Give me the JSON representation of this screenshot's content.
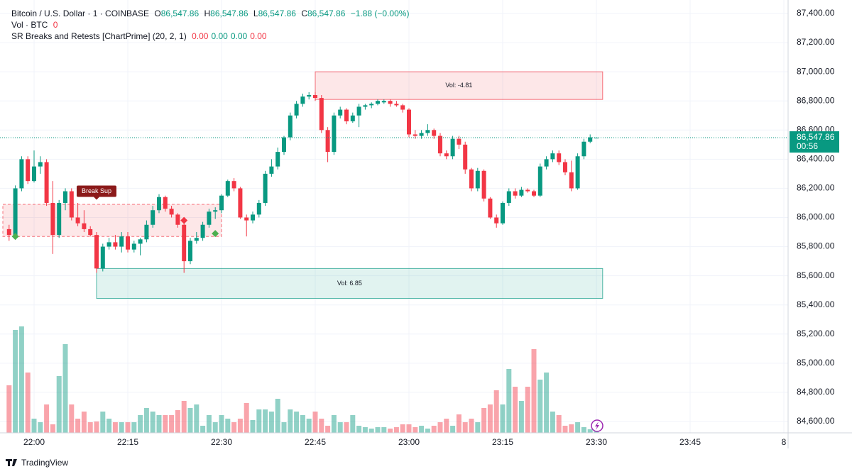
{
  "chart_data": {
    "type": "candlestick",
    "legend": {
      "symbol": "Bitcoin / U.S. Dollar · 1 · COINBASE",
      "o_label": "O",
      "open": "86,547.86",
      "h_label": "H",
      "high": "86,547.86",
      "l_label": "L",
      "low": "86,547.86",
      "c_label": "C",
      "close": "86,547.86",
      "change": "−1.88 (−0.00%)"
    },
    "volume_legend": {
      "name": "Vol · BTC",
      "value": "0"
    },
    "indicator_legend": {
      "name": "SR Breaks and Retests [ChartPrime] (20, 2, 1)",
      "values": [
        "0.00",
        "0.00",
        "0.00",
        "0.00"
      ],
      "colors": [
        "#f23645",
        "#089981",
        "#089981",
        "#f23645"
      ]
    },
    "up_color": "#089981",
    "down_color": "#f23645",
    "x": [
      "21:56",
      "21:57",
      "21:58",
      "21:59",
      "22:00",
      "22:01",
      "22:02",
      "22:03",
      "22:04",
      "22:05",
      "22:06",
      "22:07",
      "22:08",
      "22:09",
      "22:10",
      "22:11",
      "22:12",
      "22:13",
      "22:14",
      "22:15",
      "22:16",
      "22:17",
      "22:18",
      "22:19",
      "22:20",
      "22:21",
      "22:22",
      "22:23",
      "22:24",
      "22:25",
      "22:26",
      "22:27",
      "22:28",
      "22:29",
      "22:30",
      "22:31",
      "22:32",
      "22:33",
      "22:34",
      "22:35",
      "22:36",
      "22:37",
      "22:38",
      "22:39",
      "22:40",
      "22:41",
      "22:42",
      "22:43",
      "22:44",
      "22:45",
      "22:46",
      "22:47",
      "22:48",
      "22:49",
      "22:50",
      "22:51",
      "22:52",
      "22:53",
      "22:54",
      "22:55",
      "22:56",
      "22:57",
      "22:58",
      "22:59",
      "23:00",
      "23:01",
      "23:02",
      "23:03",
      "23:04",
      "23:05",
      "23:06",
      "23:07",
      "23:08",
      "23:09",
      "23:10",
      "23:11",
      "23:12",
      "23:13",
      "23:14",
      "23:15",
      "23:16",
      "23:17",
      "23:18",
      "23:19",
      "23:20",
      "23:21",
      "23:22",
      "23:23",
      "23:24",
      "23:25",
      "23:26",
      "23:27",
      "23:28",
      "23:29",
      "23:30"
    ],
    "ohlc": [
      [
        85920,
        85950,
        85840,
        85880
      ],
      [
        85880,
        86220,
        85860,
        86200
      ],
      [
        86200,
        86420,
        86180,
        86400
      ],
      [
        86400,
        86420,
        86230,
        86250
      ],
      [
        86250,
        86460,
        86240,
        86350
      ],
      [
        86350,
        86420,
        86300,
        86380
      ],
      [
        86380,
        86400,
        86080,
        86100
      ],
      [
        86100,
        86250,
        85750,
        85880
      ],
      [
        85880,
        86120,
        85860,
        86100
      ],
      [
        86100,
        86200,
        86050,
        86180
      ],
      [
        86180,
        86200,
        85980,
        86000
      ],
      [
        86000,
        86100,
        85940,
        85960
      ],
      [
        85960,
        86050,
        85900,
        85920
      ],
      [
        85920,
        85940,
        85870,
        85880
      ],
      [
        85880,
        85900,
        85620,
        85650
      ],
      [
        85650,
        85820,
        85630,
        85800
      ],
      [
        85800,
        85860,
        85780,
        85830
      ],
      [
        85830,
        85880,
        85780,
        85800
      ],
      [
        85800,
        85900,
        85760,
        85870
      ],
      [
        85870,
        85900,
        85760,
        85780
      ],
      [
        85780,
        85840,
        85760,
        85820
      ],
      [
        85820,
        85860,
        85740,
        85850
      ],
      [
        85850,
        85980,
        85830,
        85950
      ],
      [
        85950,
        86080,
        85930,
        86050
      ],
      [
        86050,
        86160,
        86030,
        86140
      ],
      [
        86140,
        86150,
        86040,
        86060
      ],
      [
        86060,
        86080,
        86000,
        86020
      ],
      [
        86020,
        86030,
        85930,
        85950
      ],
      [
        85950,
        85970,
        85620,
        85700
      ],
      [
        85700,
        85860,
        85680,
        85840
      ],
      [
        85840,
        85900,
        85820,
        85860
      ],
      [
        85860,
        85970,
        85840,
        85950
      ],
      [
        85950,
        86060,
        85930,
        86040
      ],
      [
        86040,
        86070,
        85990,
        86050
      ],
      [
        86050,
        86160,
        86030,
        86150
      ],
      [
        86150,
        86260,
        86140,
        86250
      ],
      [
        86250,
        86270,
        86180,
        86200
      ],
      [
        86200,
        86210,
        85990,
        86000
      ],
      [
        86000,
        86020,
        85870,
        85980
      ],
      [
        85980,
        86040,
        85960,
        86020
      ],
      [
        86020,
        86120,
        86000,
        86100
      ],
      [
        86100,
        86320,
        86080,
        86300
      ],
      [
        86300,
        86400,
        86280,
        86350
      ],
      [
        86350,
        86480,
        86330,
        86450
      ],
      [
        86450,
        86560,
        86430,
        86550
      ],
      [
        86550,
        86720,
        86530,
        86700
      ],
      [
        86700,
        86800,
        86680,
        86780
      ],
      [
        86780,
        86850,
        86760,
        86830
      ],
      [
        86830,
        86860,
        86810,
        86840
      ],
      [
        86840,
        86860,
        86800,
        86820
      ],
      [
        86820,
        86840,
        86580,
        86600
      ],
      [
        86600,
        86620,
        86380,
        86450
      ],
      [
        86450,
        86720,
        86430,
        86700
      ],
      [
        86700,
        86760,
        86680,
        86740
      ],
      [
        86740,
        86750,
        86640,
        86660
      ],
      [
        86660,
        86720,
        86650,
        86700
      ],
      [
        86700,
        86780,
        86620,
        86760
      ],
      [
        86760,
        86780,
        86740,
        86770
      ],
      [
        86770,
        86790,
        86750,
        86780
      ],
      [
        86780,
        86810,
        86770,
        86800
      ],
      [
        86790,
        86810,
        86780,
        86800
      ],
      [
        86800,
        86810,
        86760,
        86780
      ],
      [
        86780,
        86800,
        86760,
        86770
      ],
      [
        86770,
        86780,
        86720,
        86740
      ],
      [
        86740,
        86750,
        86550,
        86570
      ],
      [
        86570,
        86600,
        86540,
        86560
      ],
      [
        86560,
        86600,
        86540,
        86580
      ],
      [
        86580,
        86640,
        86560,
        86600
      ],
      [
        86600,
        86610,
        86540,
        86560
      ],
      [
        86560,
        86580,
        86420,
        86440
      ],
      [
        86440,
        86460,
        86400,
        86420
      ],
      [
        86420,
        86560,
        86400,
        86540
      ],
      [
        86540,
        86560,
        86470,
        86500
      ],
      [
        86500,
        86520,
        86300,
        86330
      ],
      [
        86330,
        86340,
        86180,
        86200
      ],
      [
        86200,
        86340,
        86180,
        86320
      ],
      [
        86320,
        86330,
        86110,
        86130
      ],
      [
        86130,
        86140,
        85990,
        86000
      ],
      [
        86000,
        86020,
        85930,
        85960
      ],
      [
        85960,
        86110,
        85950,
        86100
      ],
      [
        86100,
        86200,
        86080,
        86180
      ],
      [
        86180,
        86200,
        86130,
        86150
      ],
      [
        86150,
        86210,
        86140,
        86190
      ],
      [
        86190,
        86200,
        86170,
        86180
      ],
      [
        86180,
        86190,
        86140,
        86150
      ],
      [
        86150,
        86370,
        86140,
        86350
      ],
      [
        86350,
        86420,
        86330,
        86400
      ],
      [
        86400,
        86460,
        86380,
        86440
      ],
      [
        86440,
        86460,
        86360,
        86380
      ],
      [
        86380,
        86400,
        86290,
        86310
      ],
      [
        86310,
        86390,
        86180,
        86200
      ],
      [
        86200,
        86440,
        86190,
        86420
      ],
      [
        86420,
        86540,
        86400,
        86520
      ],
      [
        86520,
        86570,
        86510,
        86550
      ],
      [
        86547.86,
        86547.86,
        86547.86,
        86547.86
      ]
    ],
    "volume": [
      6.7,
      14.5,
      15,
      8.5,
      2,
      1.5,
      4,
      1.2,
      8,
      12.5,
      4,
      2,
      3,
      1.5,
      1.6,
      3,
      2,
      1.5,
      1.5,
      1.5,
      1.5,
      2.5,
      3.5,
      3,
      2.5,
      2.5,
      2.5,
      3.2,
      4.5,
      3.5,
      4,
      1,
      2.5,
      1.5,
      2.5,
      2,
      1.5,
      2,
      4.2,
      1.8,
      3.3,
      3.3,
      3,
      4.8,
      1.5,
      3.3,
      3,
      2.5,
      2,
      3,
      2,
      1,
      2.5,
      1.5,
      1.5,
      2.5,
      1,
      0.8,
      0.6,
      0.8,
      0.8,
      0.6,
      0.8,
      1.2,
      1.2,
      0.8,
      1,
      0.6,
      1,
      1.5,
      2,
      1,
      2.6,
      1.5,
      2,
      1.5,
      3.5,
      4,
      6,
      4,
      9,
      6.5,
      4.5,
      6.5,
      11.8,
      7.5,
      8.5,
      3,
      2.5,
      1,
      1.2,
      1.5,
      0.8,
      0.5,
      0.5
    ],
    "ylim": [
      84600,
      87400
    ],
    "yticks": [
      {
        "value": 84600,
        "label": "84,600.00"
      },
      {
        "value": 84800,
        "label": "84,800.00"
      },
      {
        "value": 85000,
        "label": "85,000.00"
      },
      {
        "value": 85200,
        "label": "85,200.00"
      },
      {
        "value": 85400,
        "label": "85,400.00"
      },
      {
        "value": 85600,
        "label": "85,600.00"
      },
      {
        "value": 85800,
        "label": "85,800.00"
      },
      {
        "value": 86000,
        "label": "86,000.00"
      },
      {
        "value": 86200,
        "label": "86,200.00"
      },
      {
        "value": 86400,
        "label": "86,400.00"
      },
      {
        "value": 86600,
        "label": "86,600.00"
      },
      {
        "value": 86800,
        "label": "86,800.00"
      },
      {
        "value": 87000,
        "label": "87,000.00"
      },
      {
        "value": 87200,
        "label": "87,200.00"
      },
      {
        "value": 87400,
        "label": "87,400.00"
      }
    ],
    "xticks": [
      "22:00",
      "22:15",
      "22:30",
      "22:45",
      "23:00",
      "23:15",
      "23:30",
      "23:45",
      "8"
    ],
    "grid": true,
    "last_price": {
      "value": 86547.86,
      "label": "86,547.86"
    },
    "countdown": "00:56",
    "zones": [
      {
        "start": "22:45",
        "end": "23:31",
        "top": 87000,
        "bottom": 86810,
        "label": "Vol: -4.81",
        "color": "#f23645",
        "dashed": false
      },
      {
        "start": "22:10",
        "end": "23:31",
        "top": 85650,
        "bottom": 85445,
        "label": "Vol: 6.85",
        "color": "#089981",
        "dashed": false
      },
      {
        "start": "21:55",
        "end": "22:30",
        "top": 86090,
        "bottom": 85870,
        "color": "#f23645",
        "dashed": true
      }
    ],
    "signals": [
      {
        "time": "22:10",
        "price": 86180,
        "label": "Break Sup",
        "color": "#8b1a1a"
      }
    ],
    "markers": [
      {
        "time": "21:57",
        "price": 85870,
        "color": "#4caf50"
      },
      {
        "time": "22:24",
        "price": 85980,
        "color": "#f23645"
      },
      {
        "time": "22:29",
        "price": 85890,
        "color": "#4caf50"
      }
    ],
    "brand": "TradingView"
  }
}
